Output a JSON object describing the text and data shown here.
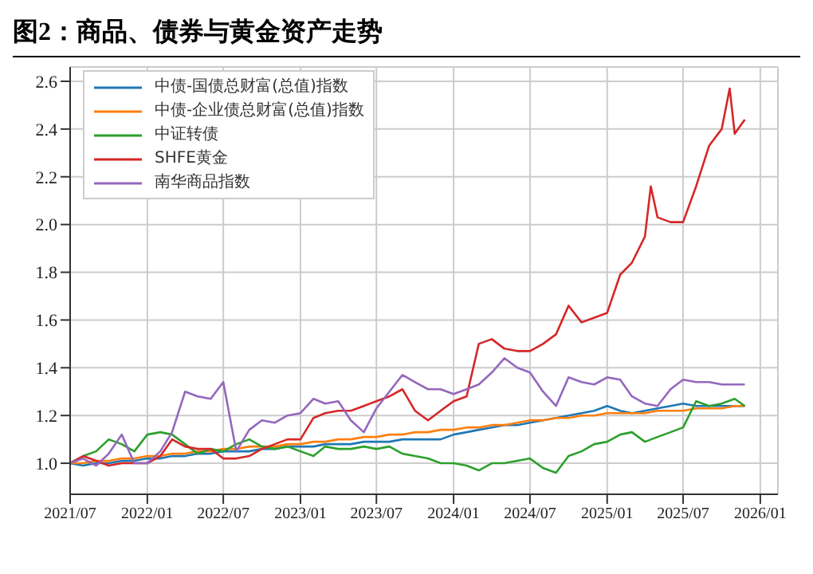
{
  "chart_data": {
    "type": "line",
    "title": "图2：商品、债券与黄金资产走势",
    "x": [
      "2021-07-01",
      "2021-08-01",
      "2021-09-01",
      "2021-10-01",
      "2021-11-01",
      "2021-12-01",
      "2022-01-01",
      "2022-02-01",
      "2022-03-01",
      "2022-04-01",
      "2022-05-01",
      "2022-06-01",
      "2022-07-01",
      "2022-08-01",
      "2022-09-01",
      "2022-10-01",
      "2022-11-01",
      "2022-12-01",
      "2023-01-01",
      "2023-02-01",
      "2023-03-01",
      "2023-04-01",
      "2023-05-01",
      "2023-06-01",
      "2023-07-01",
      "2023-08-01",
      "2023-09-01",
      "2023-10-01",
      "2023-11-01",
      "2023-12-01",
      "2024-01-01",
      "2024-02-01",
      "2024-03-01",
      "2024-04-01",
      "2024-05-01",
      "2024-06-01",
      "2024-07-01",
      "2024-08-01",
      "2024-09-01",
      "2024-10-01",
      "2024-11-01",
      "2024-12-01",
      "2025-01-01",
      "2025-02-01",
      "2025-03-01",
      "2025-04-01",
      "2025-05-01",
      "2025-06-01",
      "2025-07-01",
      "2025-08-01",
      "2025-09-01",
      "2025-10-01",
      "2025-11-01",
      "2025-11-25"
    ],
    "series": [
      {
        "name": "中债-国债总财富(总值)指数",
        "color": "#1f77b4",
        "values": [
          1.0,
          0.99,
          1.0,
          1.0,
          1.01,
          1.01,
          1.02,
          1.02,
          1.03,
          1.03,
          1.04,
          1.04,
          1.05,
          1.05,
          1.05,
          1.06,
          1.06,
          1.07,
          1.07,
          1.07,
          1.08,
          1.08,
          1.08,
          1.09,
          1.09,
          1.09,
          1.1,
          1.1,
          1.1,
          1.1,
          1.12,
          1.13,
          1.14,
          1.15,
          1.16,
          1.16,
          1.17,
          1.18,
          1.19,
          1.2,
          1.21,
          1.22,
          1.24,
          1.22,
          1.21,
          1.22,
          1.23,
          1.24,
          1.25,
          1.24,
          1.24,
          1.24,
          1.24,
          1.24
        ]
      },
      {
        "name": "中债-企业债总财富(总值)指数",
        "color": "#ff7f0e",
        "values": [
          1.0,
          1.0,
          1.01,
          1.01,
          1.02,
          1.02,
          1.03,
          1.03,
          1.04,
          1.04,
          1.05,
          1.05,
          1.06,
          1.06,
          1.07,
          1.07,
          1.07,
          1.08,
          1.08,
          1.09,
          1.09,
          1.1,
          1.1,
          1.11,
          1.11,
          1.12,
          1.12,
          1.13,
          1.13,
          1.14,
          1.14,
          1.15,
          1.15,
          1.16,
          1.16,
          1.17,
          1.18,
          1.18,
          1.19,
          1.19,
          1.2,
          1.2,
          1.21,
          1.21,
          1.21,
          1.21,
          1.22,
          1.22,
          1.22,
          1.23,
          1.23,
          1.23,
          1.24,
          1.24
        ]
      },
      {
        "name": "中证转债",
        "color": "#2ca02c",
        "values": [
          1.0,
          1.03,
          1.05,
          1.1,
          1.08,
          1.05,
          1.12,
          1.13,
          1.12,
          1.08,
          1.04,
          1.06,
          1.05,
          1.08,
          1.1,
          1.07,
          1.06,
          1.07,
          1.05,
          1.03,
          1.07,
          1.06,
          1.06,
          1.07,
          1.06,
          1.07,
          1.04,
          1.03,
          1.02,
          1.0,
          1.0,
          0.99,
          0.97,
          1.0,
          1.0,
          1.01,
          1.02,
          0.98,
          0.96,
          1.03,
          1.05,
          1.08,
          1.09,
          1.12,
          1.13,
          1.09,
          1.11,
          1.13,
          1.15,
          1.26,
          1.24,
          1.25,
          1.27,
          1.24
        ]
      },
      {
        "name": "SHFE黄金",
        "color": "#d62728",
        "x": [
          "2021-07-01",
          "2021-08-01",
          "2021-09-01",
          "2021-10-01",
          "2021-11-01",
          "2021-12-01",
          "2022-01-01",
          "2022-02-01",
          "2022-03-01",
          "2022-04-01",
          "2022-05-01",
          "2022-06-01",
          "2022-07-01",
          "2022-08-01",
          "2022-09-01",
          "2022-10-01",
          "2022-11-01",
          "2022-12-01",
          "2023-01-01",
          "2023-02-01",
          "2023-03-01",
          "2023-04-01",
          "2023-05-01",
          "2023-06-01",
          "2023-07-01",
          "2023-08-01",
          "2023-09-01",
          "2023-10-01",
          "2023-11-01",
          "2023-12-01",
          "2024-01-01",
          "2024-02-01",
          "2024-03-01",
          "2024-04-01",
          "2024-05-01",
          "2024-06-01",
          "2024-07-01",
          "2024-08-01",
          "2024-09-01",
          "2024-10-01",
          "2024-11-01",
          "2024-12-01",
          "2025-01-01",
          "2025-02-01",
          "2025-03-01",
          "2025-04-01",
          "2025-04-15",
          "2025-05-01",
          "2025-06-01",
          "2025-07-01",
          "2025-08-01",
          "2025-09-01",
          "2025-10-01",
          "2025-10-20",
          "2025-11-01",
          "2025-11-25"
        ],
        "values": [
          1.0,
          1.03,
          1.01,
          0.99,
          1.0,
          1.0,
          1.0,
          1.03,
          1.1,
          1.07,
          1.06,
          1.06,
          1.02,
          1.02,
          1.03,
          1.06,
          1.08,
          1.1,
          1.1,
          1.19,
          1.21,
          1.22,
          1.22,
          1.24,
          1.26,
          1.28,
          1.31,
          1.22,
          1.18,
          1.22,
          1.26,
          1.28,
          1.5,
          1.52,
          1.48,
          1.47,
          1.47,
          1.5,
          1.54,
          1.66,
          1.59,
          1.61,
          1.63,
          1.79,
          1.84,
          1.95,
          2.16,
          2.03,
          2.01,
          2.01,
          2.16,
          2.33,
          2.4,
          2.57,
          2.38,
          2.44
        ]
      },
      {
        "name": "南华商品指数",
        "color": "#9467bd",
        "values": [
          1.0,
          1.02,
          0.99,
          1.04,
          1.12,
          1.0,
          1.0,
          1.05,
          1.13,
          1.3,
          1.28,
          1.27,
          1.34,
          1.05,
          1.14,
          1.18,
          1.17,
          1.2,
          1.21,
          1.27,
          1.25,
          1.26,
          1.18,
          1.13,
          1.23,
          1.3,
          1.37,
          1.34,
          1.31,
          1.31,
          1.29,
          1.31,
          1.33,
          1.38,
          1.44,
          1.4,
          1.38,
          1.3,
          1.24,
          1.36,
          1.34,
          1.33,
          1.36,
          1.35,
          1.28,
          1.25,
          1.24,
          1.31,
          1.35,
          1.34,
          1.34,
          1.33,
          1.33,
          1.33
        ]
      }
    ],
    "xlim": [
      "2021-07-01",
      "2026-02-12"
    ],
    "xticks": [
      {
        "value": "2021-07-01",
        "label": "2021/07"
      },
      {
        "value": "2022-01-01",
        "label": "2022/01"
      },
      {
        "value": "2022-07-01",
        "label": "2022/07"
      },
      {
        "value": "2023-01-01",
        "label": "2023/01"
      },
      {
        "value": "2023-07-01",
        "label": "2023/07"
      },
      {
        "value": "2024-01-01",
        "label": "2024/01"
      },
      {
        "value": "2024-07-01",
        "label": "2024/07"
      },
      {
        "value": "2025-01-01",
        "label": "2025/01"
      },
      {
        "value": "2025-07-01",
        "label": "2025/07"
      },
      {
        "value": "2026-01-01",
        "label": "2026/01"
      }
    ],
    "ylim": [
      0.87,
      2.66
    ],
    "yticks": [
      {
        "value": 1,
        "label": "1.0"
      },
      1.2,
      1.4,
      1.6,
      1.8,
      {
        "value": 2,
        "label": "2.0"
      },
      2.2,
      2.4,
      2.6
    ],
    "grid": true,
    "legend": "top left",
    "marker": "none",
    "line_style": "solid"
  }
}
